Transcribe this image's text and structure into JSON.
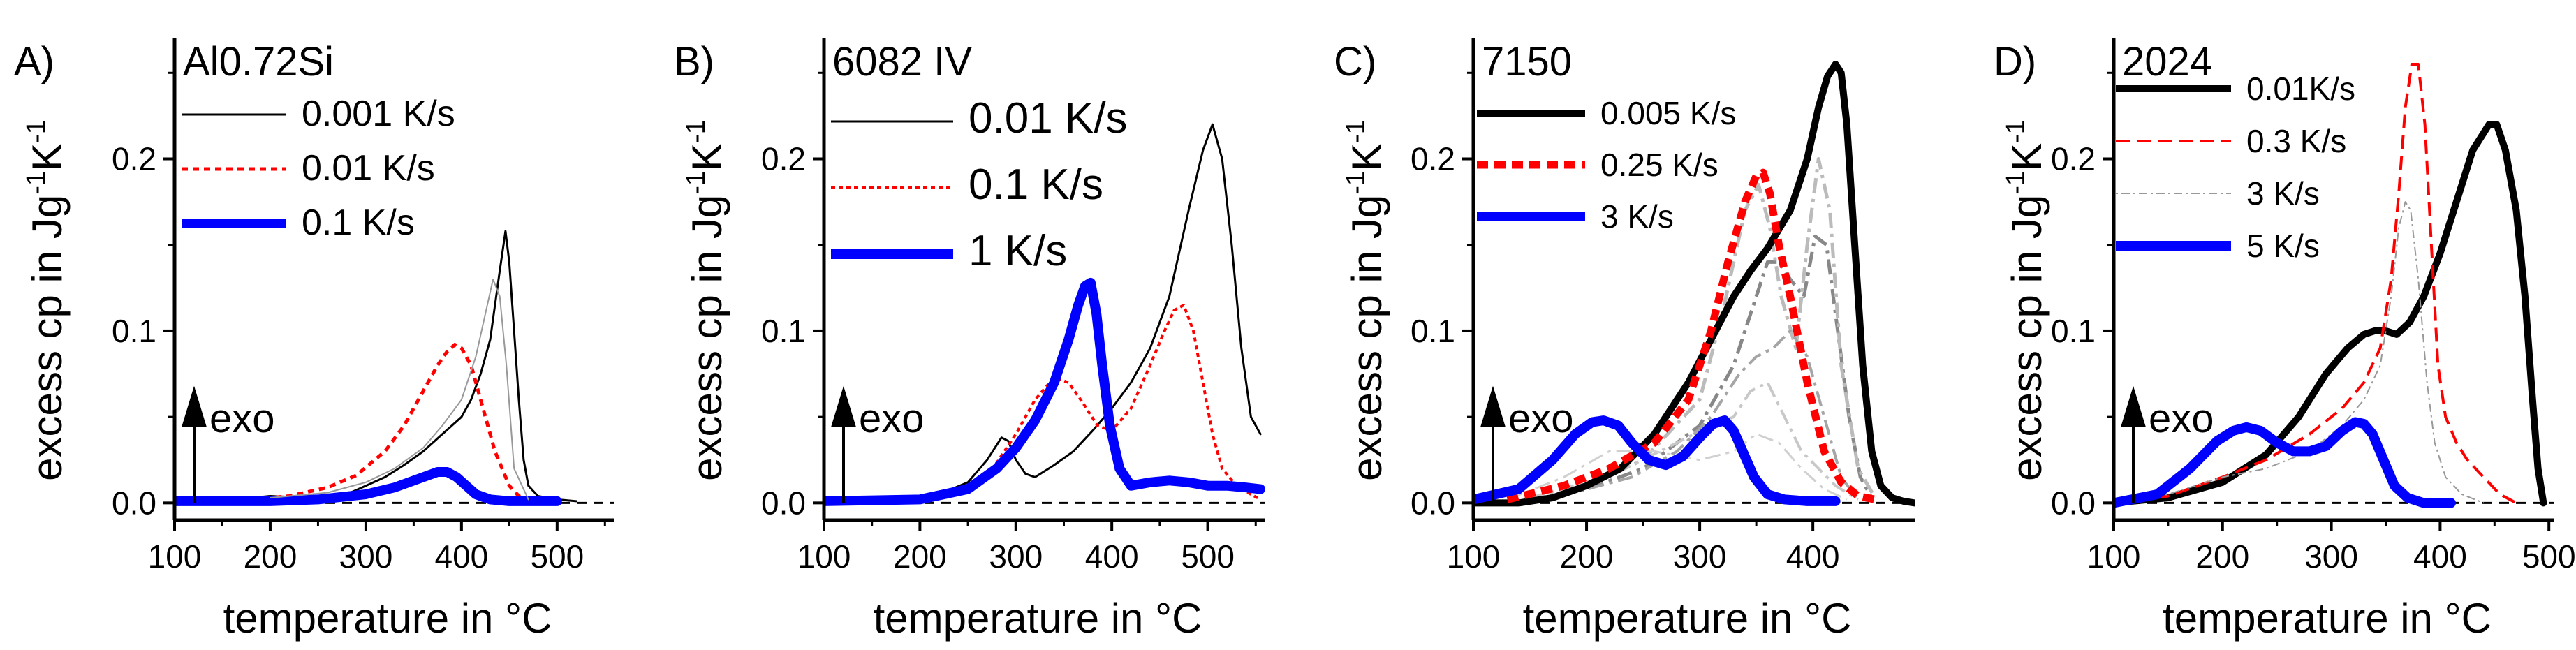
{
  "chart_data": [
    {
      "type": "line",
      "panel_label": "A)",
      "title": "Al0.72Si",
      "xlabel": "temperature in °C",
      "ylabel_main": "excess cp in Jg",
      "ylabel_sup1": "-1",
      "ylabel_mid": "K",
      "ylabel_sup2": "-1",
      "xlim": [
        100,
        560
      ],
      "ylim": [
        -0.01,
        0.27
      ],
      "xticks": [
        100,
        200,
        300,
        400,
        500
      ],
      "yticks": [
        0.0,
        0.1,
        0.2
      ],
      "ytick_labels": [
        "0.0",
        "0.1",
        "0.2"
      ],
      "exo_label": "exo",
      "legend_position": "top-left",
      "legend_font": 52,
      "series": [
        {
          "name": "0.001 K/s",
          "color": "#000000",
          "width": 3,
          "dash": "",
          "legend": true,
          "x": [
            100,
            160,
            200,
            240,
            280,
            300,
            320,
            340,
            360,
            380,
            390,
            400,
            410,
            420,
            430,
            440,
            446,
            450,
            455,
            460,
            465,
            470,
            480,
            500,
            520
          ],
          "y": [
            0.001,
            0.002,
            0.004,
            0.003,
            0.005,
            0.01,
            0.015,
            0.022,
            0.03,
            0.04,
            0.045,
            0.05,
            0.06,
            0.075,
            0.095,
            0.135,
            0.158,
            0.14,
            0.1,
            0.06,
            0.025,
            0.01,
            0.004,
            0.002,
            0.001
          ]
        },
        {
          "name": "0.01 K/s",
          "color": "#ff0000",
          "width": 5,
          "dash": "9,7",
          "legend": true,
          "x": [
            100,
            180,
            220,
            260,
            290,
            320,
            340,
            360,
            375,
            385,
            393,
            400,
            410,
            420,
            435,
            450,
            460,
            470,
            480
          ],
          "y": [
            0.001,
            0.002,
            0.004,
            0.009,
            0.016,
            0.03,
            0.045,
            0.065,
            0.08,
            0.088,
            0.092,
            0.09,
            0.08,
            0.06,
            0.03,
            0.01,
            0.004,
            0.002,
            0.001
          ]
        },
        {
          "name": "0.1 K/s",
          "color": "#0000ff",
          "width": 14,
          "dash": "",
          "legend": true,
          "x": [
            100,
            200,
            250,
            300,
            330,
            350,
            365,
            375,
            385,
            395,
            405,
            415,
            430,
            450,
            480,
            500
          ],
          "y": [
            0.001,
            0.001,
            0.002,
            0.005,
            0.009,
            0.013,
            0.016,
            0.018,
            0.018,
            0.015,
            0.01,
            0.005,
            0.002,
            0.001,
            0.001,
            0.001
          ]
        },
        {
          "name": "gray",
          "color": "#999999",
          "width": 2,
          "dash": "",
          "legend": false,
          "x": [
            200,
            260,
            300,
            330,
            360,
            380,
            400,
            415,
            425,
            433,
            440,
            447,
            455,
            470
          ],
          "y": [
            0.003,
            0.006,
            0.012,
            0.02,
            0.032,
            0.045,
            0.06,
            0.085,
            0.11,
            0.13,
            0.12,
            0.08,
            0.02,
            0.002
          ]
        }
      ]
    },
    {
      "type": "line",
      "panel_label": "B)",
      "title": "6082 IV",
      "xlabel": "temperature in °C",
      "ylabel_main": "excess cp in Jg",
      "ylabel_sup1": "-1",
      "ylabel_mid": "K",
      "ylabel_sup2": "-1",
      "xlim": [
        100,
        560
      ],
      "ylim": [
        -0.01,
        0.27
      ],
      "xticks": [
        100,
        200,
        300,
        400,
        500
      ],
      "yticks": [
        0.0,
        0.1,
        0.2
      ],
      "ytick_labels": [
        "0.0",
        "0.1",
        "0.2"
      ],
      "exo_label": "exo",
      "legend_position": "top-left",
      "legend_font": 62,
      "series": [
        {
          "name": "0.01 K/s",
          "color": "#000000",
          "width": 3,
          "dash": "",
          "legend": true,
          "x": [
            100,
            180,
            220,
            250,
            270,
            285,
            292,
            300,
            310,
            320,
            340,
            360,
            380,
            400,
            420,
            440,
            460,
            480,
            495,
            505,
            515,
            525,
            535,
            545,
            555
          ],
          "y": [
            0.001,
            0.002,
            0.005,
            0.012,
            0.025,
            0.038,
            0.036,
            0.025,
            0.017,
            0.015,
            0.022,
            0.03,
            0.042,
            0.055,
            0.07,
            0.09,
            0.12,
            0.17,
            0.205,
            0.22,
            0.2,
            0.15,
            0.09,
            0.05,
            0.04
          ]
        },
        {
          "name": "0.1 K/s",
          "color": "#ff0000",
          "width": 4,
          "dash": "6,5",
          "legend": true,
          "x": [
            100,
            200,
            240,
            270,
            300,
            320,
            340,
            355,
            370,
            385,
            400,
            420,
            440,
            455,
            465,
            475,
            485,
            495,
            505,
            515,
            530,
            545,
            555
          ],
          "y": [
            0.001,
            0.002,
            0.005,
            0.015,
            0.04,
            0.06,
            0.073,
            0.07,
            0.058,
            0.045,
            0.042,
            0.055,
            0.08,
            0.1,
            0.112,
            0.115,
            0.1,
            0.07,
            0.04,
            0.02,
            0.01,
            0.005,
            0.002
          ]
        },
        {
          "name": "1 K/s",
          "color": "#0000ff",
          "width": 14,
          "dash": "",
          "legend": true,
          "x": [
            100,
            200,
            250,
            280,
            300,
            320,
            340,
            355,
            365,
            372,
            378,
            384,
            390,
            398,
            408,
            420,
            440,
            460,
            480,
            500,
            520,
            540,
            555
          ],
          "y": [
            0.001,
            0.002,
            0.008,
            0.02,
            0.032,
            0.048,
            0.07,
            0.095,
            0.115,
            0.126,
            0.128,
            0.11,
            0.08,
            0.045,
            0.02,
            0.01,
            0.012,
            0.013,
            0.012,
            0.01,
            0.01,
            0.009,
            0.008
          ]
        }
      ]
    },
    {
      "type": "line",
      "panel_label": "C)",
      "title": "7150",
      "xlabel": "temperature in °C",
      "ylabel_main": "excess cp in Jg",
      "ylabel_sup1": "-1",
      "ylabel_mid": "K",
      "ylabel_sup2": "-1",
      "xlim": [
        100,
        490
      ],
      "ylim": [
        -0.01,
        0.27
      ],
      "xticks": [
        100,
        200,
        300,
        400
      ],
      "yticks": [
        0.0,
        0.1,
        0.2
      ],
      "ytick_labels": [
        "0.0",
        "0.1",
        "0.2"
      ],
      "exo_label": "exo",
      "legend_position": "top-left",
      "legend_font": 46,
      "series": [
        {
          "name": "gray-dashdot-1",
          "color": "#888888",
          "width": 5,
          "dash": "22,8,5,8",
          "legend": false,
          "x": [
            150,
            200,
            250,
            300,
            330,
            350,
            360,
            370,
            380,
            392,
            402,
            412,
            422,
            432,
            442,
            452
          ],
          "y": [
            0.002,
            0.008,
            0.02,
            0.045,
            0.08,
            0.12,
            0.14,
            0.14,
            0.13,
            0.12,
            0.155,
            0.15,
            0.1,
            0.05,
            0.015,
            0.003
          ]
        },
        {
          "name": "gray-dashdot-2",
          "color": "#bbbbbb",
          "width": 5,
          "dash": "22,8,5,8",
          "legend": false,
          "x": [
            150,
            200,
            250,
            300,
            320,
            340,
            352,
            362,
            372,
            385,
            395,
            405,
            415,
            425,
            440,
            455
          ],
          "y": [
            0.002,
            0.01,
            0.025,
            0.06,
            0.11,
            0.17,
            0.185,
            0.16,
            0.12,
            0.09,
            0.15,
            0.2,
            0.17,
            0.08,
            0.02,
            0.003
          ]
        },
        {
          "name": "gray-dashdot-3",
          "color": "#c8c8c8",
          "width": 4,
          "dash": "22,8,5,8",
          "legend": false,
          "x": [
            150,
            200,
            240,
            280,
            310,
            330,
            345,
            360,
            375,
            390,
            405,
            420,
            440
          ],
          "y": [
            0.003,
            0.012,
            0.022,
            0.035,
            0.045,
            0.05,
            0.065,
            0.07,
            0.05,
            0.03,
            0.02,
            0.01,
            0.002
          ]
        },
        {
          "name": "gray-dashdot-4",
          "color": "#a5a5a5",
          "width": 4,
          "dash": "22,8,5,8",
          "legend": false,
          "x": [
            150,
            200,
            240,
            280,
            310,
            335,
            350,
            365,
            380,
            395,
            410,
            425,
            440
          ],
          "y": [
            0.002,
            0.008,
            0.015,
            0.03,
            0.05,
            0.075,
            0.085,
            0.09,
            0.1,
            0.085,
            0.05,
            0.015,
            0.002
          ]
        },
        {
          "name": "gray-dashdot-5",
          "color": "#d0d0d0",
          "width": 3,
          "dash": "22,8,5,8",
          "legend": false,
          "x": [
            130,
            180,
            220,
            260,
            300,
            330,
            350,
            370,
            390,
            410,
            430
          ],
          "y": [
            0.002,
            0.015,
            0.03,
            0.03,
            0.025,
            0.03,
            0.04,
            0.035,
            0.02,
            0.008,
            0.002
          ]
        },
        {
          "name": "0.005 K/s",
          "color": "#000000",
          "width": 10,
          "dash": "",
          "legend": true,
          "x": [
            100,
            140,
            170,
            200,
            230,
            260,
            290,
            310,
            330,
            345,
            360,
            380,
            395,
            405,
            413,
            420,
            425,
            430,
            437,
            444,
            452,
            460,
            470,
            480,
            490
          ],
          "y": [
            0.0,
            0.0,
            0.003,
            0.01,
            0.02,
            0.04,
            0.07,
            0.095,
            0.12,
            0.135,
            0.148,
            0.17,
            0.2,
            0.23,
            0.248,
            0.255,
            0.25,
            0.22,
            0.15,
            0.08,
            0.03,
            0.01,
            0.003,
            0.001,
            0.0
          ]
        },
        {
          "name": "0.25 K/s",
          "color": "#ff0000",
          "width": 11,
          "dash": "16,9",
          "legend": true,
          "x": [
            130,
            180,
            220,
            260,
            290,
            310,
            325,
            340,
            350,
            356,
            362,
            370,
            380,
            395,
            410,
            425,
            440,
            455
          ],
          "y": [
            0.002,
            0.01,
            0.02,
            0.035,
            0.06,
            0.1,
            0.14,
            0.175,
            0.19,
            0.192,
            0.18,
            0.15,
            0.12,
            0.07,
            0.03,
            0.012,
            0.004,
            0.002
          ]
        },
        {
          "name": "3 K/s",
          "color": "#0000ff",
          "width": 14,
          "dash": "",
          "legend": true,
          "x": [
            100,
            140,
            170,
            190,
            205,
            215,
            228,
            240,
            255,
            270,
            285,
            300,
            312,
            322,
            330,
            338,
            348,
            360,
            375,
            395,
            420
          ],
          "y": [
            0.002,
            0.008,
            0.025,
            0.04,
            0.047,
            0.048,
            0.045,
            0.035,
            0.025,
            0.022,
            0.027,
            0.038,
            0.046,
            0.048,
            0.042,
            0.03,
            0.015,
            0.005,
            0.002,
            0.001,
            0.001
          ]
        }
      ]
    },
    {
      "type": "line",
      "panel_label": "D)",
      "title": "2024",
      "xlabel": "temperature in °C",
      "ylabel_main": "excess cp in Jg",
      "ylabel_sup1": "-1",
      "ylabel_mid": "K",
      "ylabel_sup2": "-1",
      "xlim": [
        100,
        505
      ],
      "ylim": [
        -0.01,
        0.27
      ],
      "xticks": [
        100,
        200,
        300,
        400,
        500
      ],
      "yticks": [
        0.0,
        0.1,
        0.2
      ],
      "ytick_labels": [
        "0.0",
        "0.1",
        "0.2"
      ],
      "exo_label": "exo",
      "legend_position": "top-left",
      "legend_font": 46,
      "series": [
        {
          "name": "0.01K/s",
          "color": "#000000",
          "width": 10,
          "dash": "",
          "legend": true,
          "x": [
            100,
            150,
            200,
            240,
            270,
            295,
            315,
            330,
            340,
            350,
            360,
            372,
            385,
            400,
            415,
            430,
            445,
            452,
            460,
            470,
            478,
            485,
            490,
            495
          ],
          "y": [
            0.0,
            0.003,
            0.012,
            0.028,
            0.05,
            0.075,
            0.09,
            0.098,
            0.1,
            0.1,
            0.098,
            0.105,
            0.12,
            0.145,
            0.175,
            0.205,
            0.22,
            0.22,
            0.205,
            0.17,
            0.12,
            0.06,
            0.02,
            0.0
          ]
        },
        {
          "name": "0.3 K/s",
          "color": "#ff0000",
          "width": 4,
          "dash": "20,10",
          "legend": true,
          "x": [
            100,
            150,
            200,
            240,
            280,
            310,
            330,
            345,
            355,
            362,
            368,
            374,
            380,
            386,
            392,
            398,
            405,
            415,
            425,
            440,
            455,
            470
          ],
          "y": [
            0.0,
            0.004,
            0.015,
            0.025,
            0.04,
            0.055,
            0.07,
            0.09,
            0.13,
            0.18,
            0.23,
            0.255,
            0.255,
            0.22,
            0.15,
            0.08,
            0.05,
            0.035,
            0.025,
            0.015,
            0.005,
            0.0
          ]
        },
        {
          "name": "3 K/s",
          "color": "#999999",
          "width": 2,
          "dash": "3,5,12,5",
          "legend": true,
          "x": [
            100,
            150,
            200,
            240,
            280,
            310,
            330,
            345,
            355,
            362,
            368,
            373,
            380,
            388,
            395,
            405,
            420,
            440
          ],
          "y": [
            0.0,
            0.005,
            0.015,
            0.02,
            0.03,
            0.045,
            0.06,
            0.08,
            0.12,
            0.16,
            0.175,
            0.17,
            0.13,
            0.07,
            0.035,
            0.015,
            0.005,
            0.0
          ]
        },
        {
          "name": "5 K/s",
          "color": "#0000ff",
          "width": 14,
          "dash": "",
          "legend": true,
          "x": [
            100,
            140,
            170,
            195,
            210,
            222,
            235,
            250,
            265,
            280,
            295,
            310,
            322,
            330,
            338,
            348,
            358,
            370,
            385,
            400,
            410
          ],
          "y": [
            0.0,
            0.005,
            0.02,
            0.036,
            0.042,
            0.044,
            0.042,
            0.035,
            0.03,
            0.03,
            0.033,
            0.042,
            0.047,
            0.046,
            0.04,
            0.025,
            0.01,
            0.003,
            0.0,
            0.0,
            0.0
          ]
        }
      ]
    }
  ]
}
